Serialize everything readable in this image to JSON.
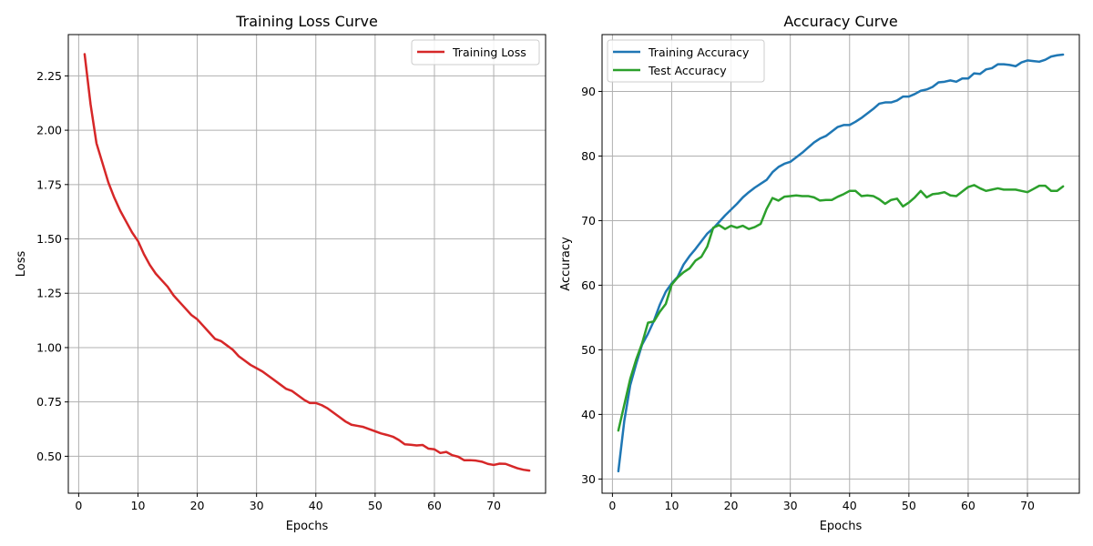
{
  "chart_data": [
    {
      "type": "line",
      "title": "Training Loss Curve",
      "xlabel": "Epochs",
      "ylabel": "Loss",
      "xlim": [
        -1.75,
        78.75
      ],
      "ylim": [
        0.33,
        2.44
      ],
      "xticks": [
        0,
        10,
        20,
        30,
        40,
        50,
        60,
        70
      ],
      "xtick_labels": [
        "0",
        "10",
        "20",
        "30",
        "40",
        "50",
        "60",
        "70"
      ],
      "yticks": [
        0.5,
        0.75,
        1.0,
        1.25,
        1.5,
        1.75,
        2.0,
        2.25
      ],
      "ytick_labels": [
        "0.50",
        "0.75",
        "1.00",
        "1.25",
        "1.50",
        "1.75",
        "2.00",
        "2.25"
      ],
      "grid": true,
      "legend": "top-right",
      "x": [
        1,
        2,
        3,
        4,
        5,
        6,
        7,
        8,
        9,
        10,
        11,
        12,
        13,
        14,
        15,
        16,
        17,
        18,
        19,
        20,
        21,
        22,
        23,
        24,
        25,
        26,
        27,
        28,
        29,
        30,
        31,
        32,
        33,
        34,
        35,
        36,
        37,
        38,
        39,
        40,
        41,
        42,
        43,
        44,
        45,
        46,
        47,
        48,
        49,
        50,
        51,
        52,
        53,
        54,
        55,
        56,
        57,
        58,
        59,
        60,
        61,
        62,
        63,
        64,
        65,
        66,
        67,
        68,
        69,
        70,
        71,
        72,
        73,
        74,
        75,
        76
      ],
      "series": [
        {
          "name": "Training Loss",
          "color": "#d62728",
          "values": [
            2.35,
            2.12,
            1.94,
            1.85,
            1.76,
            1.69,
            1.63,
            1.58,
            1.53,
            1.49,
            1.43,
            1.38,
            1.34,
            1.31,
            1.28,
            1.24,
            1.21,
            1.18,
            1.15,
            1.13,
            1.1,
            1.07,
            1.04,
            1.03,
            1.01,
            0.99,
            0.96,
            0.94,
            0.92,
            0.905,
            0.89,
            0.87,
            0.85,
            0.83,
            0.81,
            0.8,
            0.78,
            0.76,
            0.745,
            0.745,
            0.735,
            0.72,
            0.7,
            0.68,
            0.66,
            0.645,
            0.64,
            0.635,
            0.625,
            0.615,
            0.605,
            0.598,
            0.59,
            0.575,
            0.555,
            0.553,
            0.55,
            0.552,
            0.535,
            0.532,
            0.515,
            0.52,
            0.505,
            0.498,
            0.482,
            0.482,
            0.48,
            0.475,
            0.465,
            0.46,
            0.466,
            0.465,
            0.455,
            0.445,
            0.438,
            0.434
          ]
        }
      ]
    },
    {
      "type": "line",
      "title": "Accuracy Curve",
      "xlabel": "Epochs",
      "ylabel": "Accuracy",
      "xlim": [
        -1.75,
        78.75
      ],
      "ylim": [
        27.8,
        98.8
      ],
      "xticks": [
        0,
        10,
        20,
        30,
        40,
        50,
        60,
        70
      ],
      "xtick_labels": [
        "0",
        "10",
        "20",
        "30",
        "40",
        "50",
        "60",
        "70"
      ],
      "yticks": [
        30,
        40,
        50,
        60,
        70,
        80,
        90
      ],
      "ytick_labels": [
        "30",
        "40",
        "50",
        "60",
        "70",
        "80",
        "90"
      ],
      "grid": true,
      "legend": "top-left",
      "x": [
        1,
        2,
        3,
        4,
        5,
        6,
        7,
        8,
        9,
        10,
        11,
        12,
        13,
        14,
        15,
        16,
        17,
        18,
        19,
        20,
        21,
        22,
        23,
        24,
        25,
        26,
        27,
        28,
        29,
        30,
        31,
        32,
        33,
        34,
        35,
        36,
        37,
        38,
        39,
        40,
        41,
        42,
        43,
        44,
        45,
        46,
        47,
        48,
        49,
        50,
        51,
        52,
        53,
        54,
        55,
        56,
        57,
        58,
        59,
        60,
        61,
        62,
        63,
        64,
        65,
        66,
        67,
        68,
        69,
        70,
        71,
        72,
        73,
        74,
        75,
        76
      ],
      "series": [
        {
          "name": "Training Accuracy",
          "color": "#1f77b4",
          "values": [
            31.2,
            39.0,
            44.5,
            47.8,
            50.8,
            52.5,
            54.5,
            57.0,
            59.0,
            60.3,
            61.3,
            63.2,
            64.5,
            65.6,
            66.8,
            68.0,
            68.8,
            69.8,
            70.8,
            71.7,
            72.6,
            73.6,
            74.4,
            75.1,
            75.7,
            76.3,
            77.5,
            78.3,
            78.8,
            79.1,
            79.8,
            80.5,
            81.3,
            82.1,
            82.7,
            83.1,
            83.8,
            84.5,
            84.8,
            84.8,
            85.3,
            85.9,
            86.6,
            87.3,
            88.1,
            88.3,
            88.3,
            88.6,
            89.2,
            89.2,
            89.6,
            90.1,
            90.3,
            90.7,
            91.4,
            91.5,
            91.7,
            91.5,
            92.0,
            92.0,
            92.8,
            92.7,
            93.4,
            93.6,
            94.2,
            94.2,
            94.1,
            93.9,
            94.5,
            94.8,
            94.7,
            94.6,
            94.9,
            95.4,
            95.6,
            95.7
          ]
        },
        {
          "name": "Test Accuracy",
          "color": "#2ca02c",
          "values": [
            37.5,
            41.5,
            45.5,
            48.5,
            51.0,
            54.2,
            54.4,
            55.9,
            57.1,
            60.1,
            61.2,
            62.0,
            62.6,
            63.8,
            64.4,
            66.0,
            68.9,
            69.3,
            68.7,
            69.2,
            68.9,
            69.2,
            68.7,
            69.0,
            69.5,
            71.8,
            73.5,
            73.1,
            73.7,
            73.8,
            73.9,
            73.8,
            73.8,
            73.6,
            73.1,
            73.2,
            73.2,
            73.7,
            74.1,
            74.6,
            74.6,
            73.8,
            73.9,
            73.8,
            73.3,
            72.6,
            73.2,
            73.4,
            72.2,
            72.8,
            73.6,
            74.6,
            73.6,
            74.1,
            74.2,
            74.4,
            73.9,
            73.8,
            74.5,
            75.2,
            75.5,
            75.0,
            74.6,
            74.8,
            75.0,
            74.8,
            74.8,
            74.8,
            74.6,
            74.4,
            74.9,
            75.4,
            75.4,
            74.6,
            74.6,
            75.3
          ]
        }
      ]
    }
  ]
}
